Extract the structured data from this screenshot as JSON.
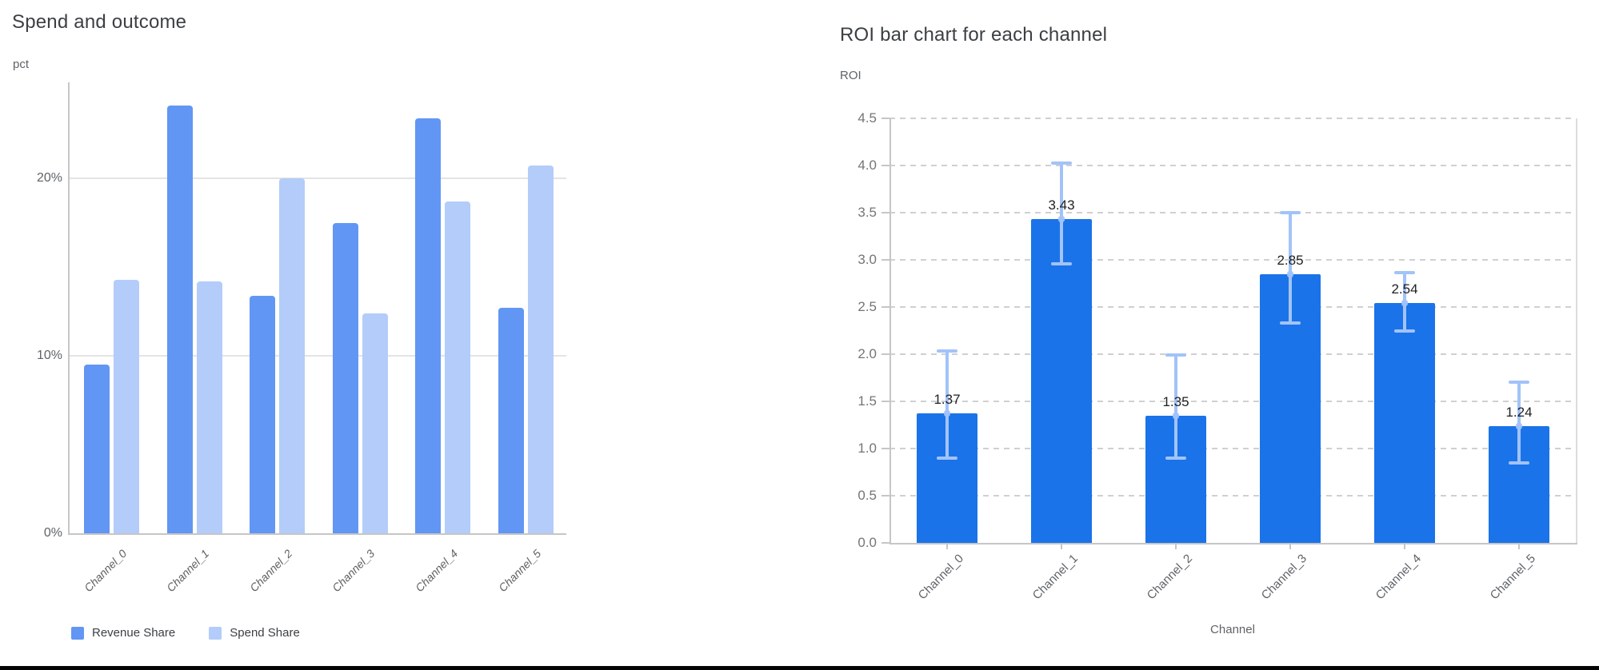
{
  "chart_data": [
    {
      "type": "bar",
      "title": "Spend and outcome",
      "ylabel": "pct",
      "xlabel": "",
      "categories": [
        "Channel_0",
        "Channel_1",
        "Channel_2",
        "Channel_3",
        "Channel_4",
        "Channel_5"
      ],
      "series": [
        {
          "name": "Revenue Share",
          "color": "#6196f4",
          "values": [
            9.5,
            24.1,
            13.4,
            17.5,
            23.4,
            12.7
          ]
        },
        {
          "name": "Spend Share",
          "color": "#b3ccfa",
          "values": [
            14.3,
            14.2,
            20.0,
            12.4,
            18.7,
            20.7
          ]
        }
      ],
      "y_ticks": [
        {
          "value": 0,
          "label": "0%"
        },
        {
          "value": 10,
          "label": "10%"
        },
        {
          "value": 20,
          "label": "20%"
        }
      ],
      "ylim": [
        0,
        25.4
      ],
      "unit": "percent share",
      "grid": "solid horizontal gridlines",
      "legend_position": "bottom-left"
    },
    {
      "type": "bar",
      "title": "ROI bar chart for each channel",
      "ylabel": "ROI",
      "xlabel": "Channel",
      "categories": [
        "Channel_0",
        "Channel_1",
        "Channel_2",
        "Channel_3",
        "Channel_4",
        "Channel_5"
      ],
      "values": [
        1.37,
        3.43,
        1.35,
        2.85,
        2.54,
        1.24
      ],
      "value_labels": [
        "1.37",
        "3.43",
        "1.35",
        "2.85",
        "2.54",
        "1.24"
      ],
      "error_low": [
        0.89,
        2.95,
        0.89,
        2.32,
        2.24,
        0.84
      ],
      "error_high": [
        2.04,
        4.03,
        2.0,
        3.51,
        2.87,
        1.71
      ],
      "bar_color": "#1a73e8",
      "error_bar_color": "#a2c3f9",
      "y_ticks": [
        {
          "value": 0.0,
          "label": "0.0"
        },
        {
          "value": 0.5,
          "label": "0.5"
        },
        {
          "value": 1.0,
          "label": "1.0"
        },
        {
          "value": 1.5,
          "label": "1.5"
        },
        {
          "value": 2.0,
          "label": "2.0"
        },
        {
          "value": 2.5,
          "label": "2.5"
        },
        {
          "value": 3.0,
          "label": "3.0"
        },
        {
          "value": 3.5,
          "label": "3.5"
        },
        {
          "value": 4.0,
          "label": "4.0"
        },
        {
          "value": 4.5,
          "label": "4.5"
        }
      ],
      "ylim": [
        0,
        4.5
      ],
      "grid": "dashed horizontal gridlines",
      "legend_position": "none"
    }
  ]
}
